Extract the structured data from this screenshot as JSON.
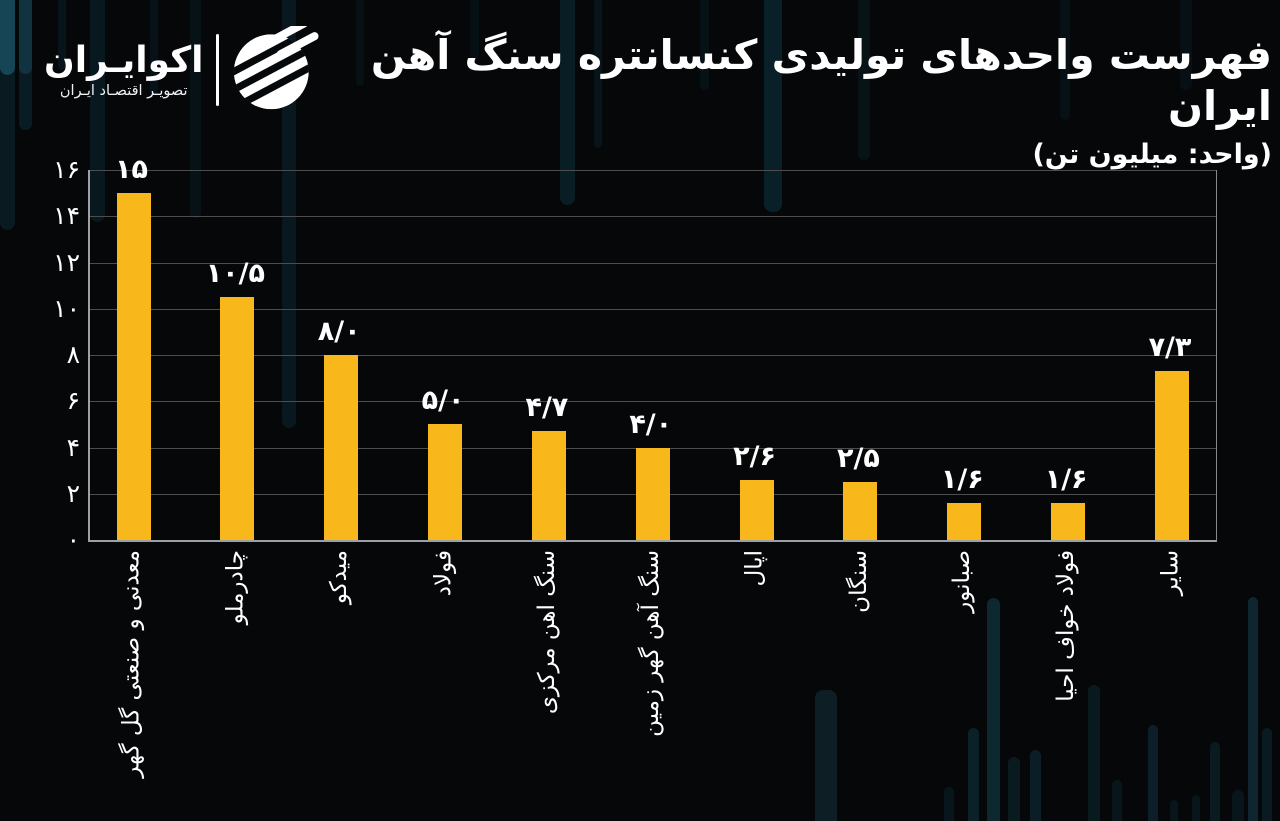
{
  "brand": {
    "name": "اکوایـران",
    "tagline": "تصویـر اقتصـاد ایـران",
    "logo_icon": "ecoiran-striped-circle-icon"
  },
  "header": {
    "title": "فهرست واحدهای تولیدی کنسانتره سنگ آهن ایران",
    "unit_note": "(واحد: میلیون تن)"
  },
  "chart_data": {
    "type": "bar",
    "title": "فهرست واحدهای تولیدی کنسانتره سنگ آهن ایران",
    "unit_label": "(واحد: میلیون تن)",
    "unit": "میلیون تن",
    "categories": [
      "معدنی و صنعتی گل گهر",
      "چادرملو",
      "میدکو",
      "فولاد",
      "سنگ اهن مرکزی",
      "سنگ آهن گهر زمین",
      "اپال",
      "سنگان",
      "صبانور",
      "فولاد خواف احیا",
      "سایر"
    ],
    "values": [
      15,
      10.5,
      8.0,
      5.0,
      4.7,
      4.0,
      2.6,
      2.5,
      1.6,
      1.6,
      7.3
    ],
    "value_labels": [
      "۱۵",
      "۱۰/۵",
      "۸/۰",
      "۵/۰",
      "۴/۷",
      "۴/۰",
      "۲/۶",
      "۲/۵",
      "۱/۶",
      "۱/۶",
      "۷/۳"
    ],
    "y_ticks": [
      0,
      2,
      4,
      6,
      8,
      10,
      12,
      14,
      16
    ],
    "y_tick_labels": [
      "۰",
      "۲",
      "۴",
      "۶",
      "۸",
      "۱۰",
      "۱۲",
      "۱۴",
      "۱۶"
    ],
    "ylim": [
      0,
      16
    ],
    "grid": true,
    "legend": "none",
    "bar_color": "#F8B71B",
    "category_label_rotation_deg": -90
  },
  "colors": {
    "background": "#050708",
    "bar": "#F8B71B",
    "grid": "#4d4d4d",
    "axis": "#9ba1a4",
    "text": "#ffffff",
    "decor_teal": "#123845"
  }
}
